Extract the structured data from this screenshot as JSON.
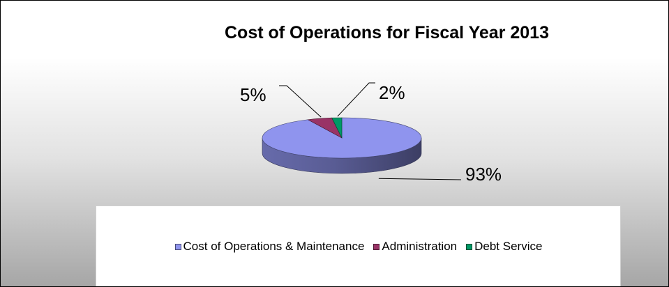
{
  "chart_data": {
    "type": "pie",
    "title": "Cost of Operations for Fiscal Year 2013",
    "three_d": true,
    "categories": [
      "Cost of Operations & Maintenance",
      "Administration",
      "Debt Service"
    ],
    "values": [
      93,
      5,
      2
    ],
    "data_labels": [
      "93%",
      "5%",
      "2%"
    ],
    "colors": [
      "#8f94ee",
      "#993366",
      "#009966"
    ],
    "legend_position": "bottom"
  }
}
